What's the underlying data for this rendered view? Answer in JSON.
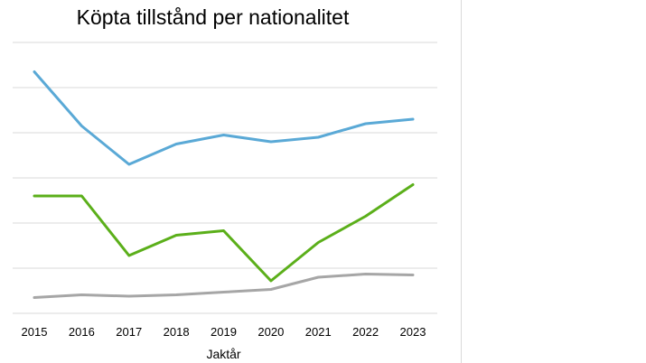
{
  "chart_data": {
    "type": "line",
    "title": "Köpta tillstånd per nationalitet",
    "xlabel": "Jaktår",
    "ylabel": "",
    "categories": [
      "2015",
      "2016",
      "2017",
      "2018",
      "2019",
      "2020",
      "2021",
      "2022",
      "2023"
    ],
    "ylim": [
      0,
      6
    ],
    "grid": true,
    "series": [
      {
        "color": "#5AA9D6",
        "values": [
          5.35,
          4.15,
          3.3,
          3.75,
          3.95,
          3.8,
          3.9,
          4.2,
          4.3
        ]
      },
      {
        "color": "#5BAF1A",
        "values": [
          2.6,
          2.6,
          1.28,
          1.73,
          1.83,
          0.72,
          1.57,
          2.15,
          2.85
        ]
      },
      {
        "color": "#A6A6A6",
        "values": [
          0.35,
          0.41,
          0.38,
          0.41,
          0.47,
          0.53,
          0.8,
          0.87,
          0.85
        ]
      }
    ]
  }
}
